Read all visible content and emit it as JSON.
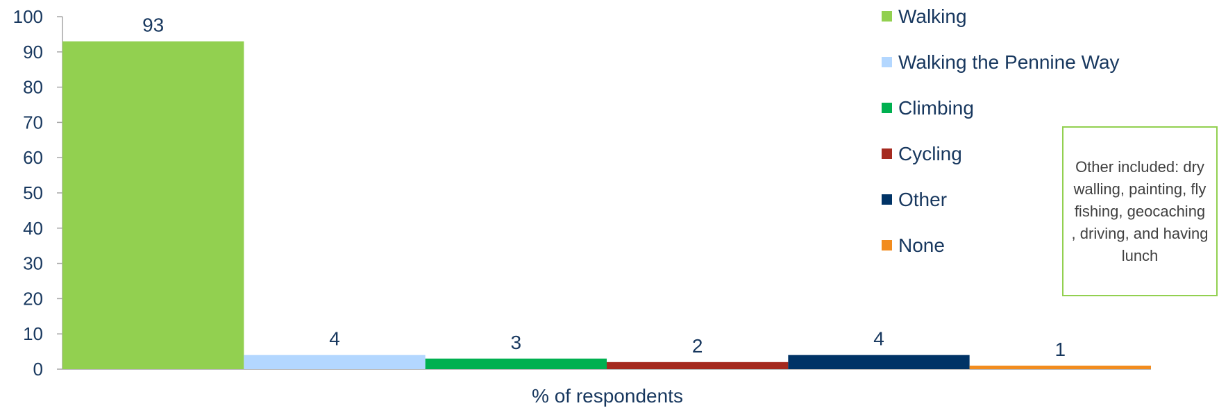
{
  "chart_data": {
    "type": "bar",
    "xlabel": "% of respondents",
    "ylabel": "",
    "ylim": [
      0,
      100
    ],
    "yticks": [
      0,
      10,
      20,
      30,
      40,
      50,
      60,
      70,
      80,
      90,
      100
    ],
    "grid": false,
    "legend_position": "top-right",
    "series": [
      {
        "name": "Walking",
        "value": 93,
        "color": "#92d050"
      },
      {
        "name": "Walking the Pennine Way",
        "value": 4,
        "color": "#b3d7ff"
      },
      {
        "name": "Climbing",
        "value": 3,
        "color": "#00b050"
      },
      {
        "name": "Cycling",
        "value": 2,
        "color": "#a52a1f"
      },
      {
        "name": "Other",
        "value": 4,
        "color": "#003366"
      },
      {
        "name": "None",
        "value": 1,
        "color": "#f28c1e"
      }
    ]
  },
  "note": {
    "text": "Other included: dry walling, painting, fly fishing, geocaching , driving, and having lunch"
  }
}
